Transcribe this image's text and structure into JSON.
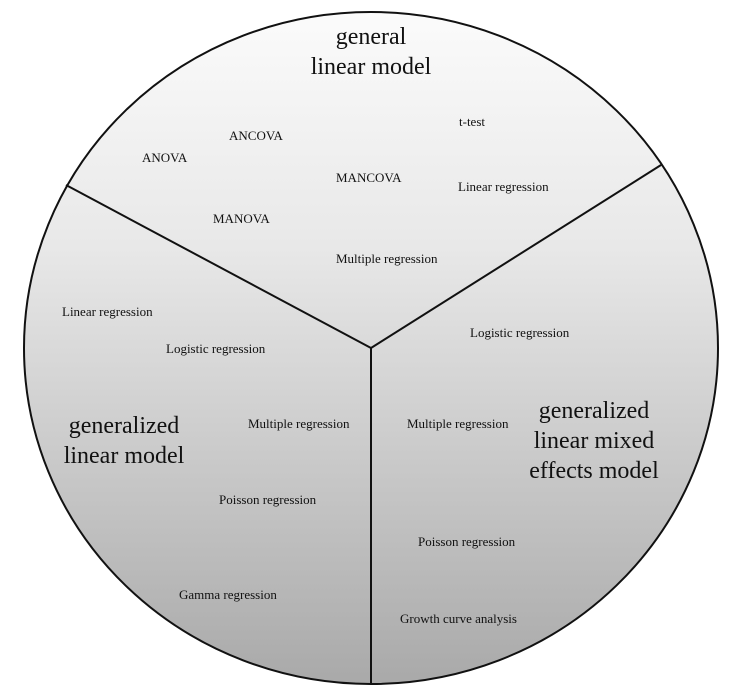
{
  "sectors": {
    "top": {
      "title_lines": [
        "general",
        "linear model"
      ],
      "items": [
        "ANCOVA",
        "t-test",
        "ANOVA",
        "MANCOVA",
        "Linear regression",
        "MANOVA",
        "Multiple regression"
      ]
    },
    "left": {
      "title_lines": [
        "generalized",
        "linear model"
      ],
      "items": [
        "Linear regression",
        "Logistic regression",
        "Multiple regression",
        "Poisson regression",
        "Gamma regression"
      ]
    },
    "right": {
      "title_lines": [
        "generalized",
        "linear mixed",
        "effects model"
      ],
      "items": [
        "Logistic regression",
        "Multiple regression",
        "Poisson regression",
        "Growth curve analysis"
      ]
    }
  }
}
